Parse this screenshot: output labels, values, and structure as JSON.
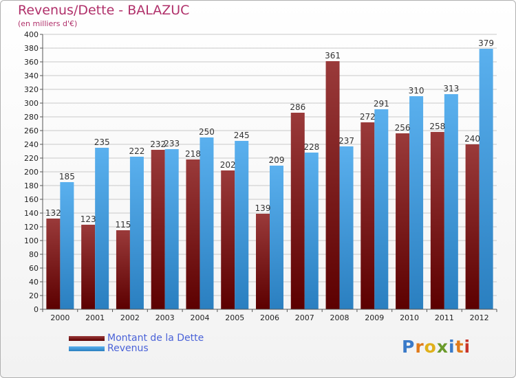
{
  "title": "Revenus/Dette - BALAZUC",
  "subtitle": "(en milliers d'€)",
  "colors": {
    "dette_top": "#9a3a3a",
    "dette_bottom": "#5c0000",
    "revenus_top": "#5ab0ee",
    "revenus_bottom": "#2a7fc0",
    "grid": "#c8c8c8",
    "axis_text": "#222222",
    "label_text": "#333333"
  },
  "logo": {
    "letters": [
      "P",
      "r",
      "o",
      "x",
      "i",
      "t",
      "i"
    ],
    "colors": [
      "#3a7ac8",
      "#e07a1a",
      "#e0b01a",
      "#6a9a2a",
      "#3a7ac8",
      "#e07a1a",
      "#c8342a"
    ]
  },
  "chart_data": {
    "type": "bar",
    "title": "Revenus/Dette - BALAZUC",
    "subtitle": "(en milliers d'€)",
    "categories": [
      "2000",
      "2001",
      "2002",
      "2003",
      "2004",
      "2005",
      "2006",
      "2007",
      "2008",
      "2009",
      "2010",
      "2011",
      "2012"
    ],
    "series": [
      {
        "name": "Montant de la Dette",
        "values": [
          132,
          123,
          115,
          232,
          218,
          202,
          139,
          286,
          361,
          272,
          256,
          258,
          240
        ]
      },
      {
        "name": "Revenus",
        "values": [
          185,
          235,
          222,
          233,
          250,
          245,
          209,
          228,
          237,
          291,
          310,
          313,
          379
        ]
      }
    ],
    "ylim": [
      0,
      400
    ],
    "yticks": [
      0,
      20,
      40,
      60,
      80,
      100,
      120,
      140,
      160,
      180,
      200,
      220,
      240,
      260,
      280,
      300,
      320,
      340,
      360,
      380,
      400
    ],
    "grid": true,
    "legend_position": "bottom-left"
  }
}
